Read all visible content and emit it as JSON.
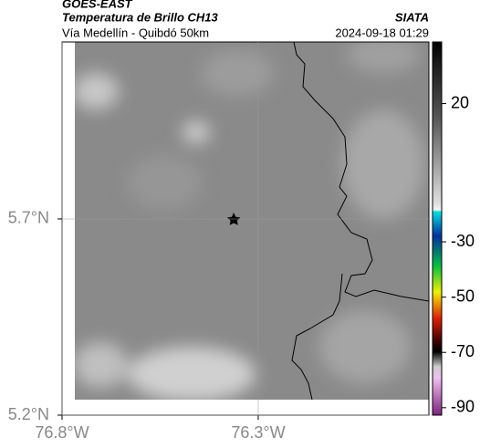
{
  "header": {
    "title": "GOES-EAST",
    "subtitle": "Temperatura de Brillo CH13",
    "source": "SIATA",
    "route": "Vía Medellín - Quibdó 50km",
    "datetime": "2024-09-18 01:29"
  },
  "map": {
    "xlim": [
      -76.8,
      -75.865
    ],
    "ylim": [
      5.2,
      6.151
    ],
    "xticks": [
      {
        "value": -76.8,
        "label": "76.8°W"
      },
      {
        "value": -76.3,
        "label": "76.3°W"
      }
    ],
    "yticks": [
      {
        "value": 5.7,
        "label": "5.7°N"
      },
      {
        "value": 5.2,
        "label": "5.2°N"
      }
    ]
  },
  "colorbar": {
    "lim": [
      -92.7,
      42.3
    ],
    "ticks": [
      20,
      -30,
      -50,
      -70,
      -90
    ]
  }
}
